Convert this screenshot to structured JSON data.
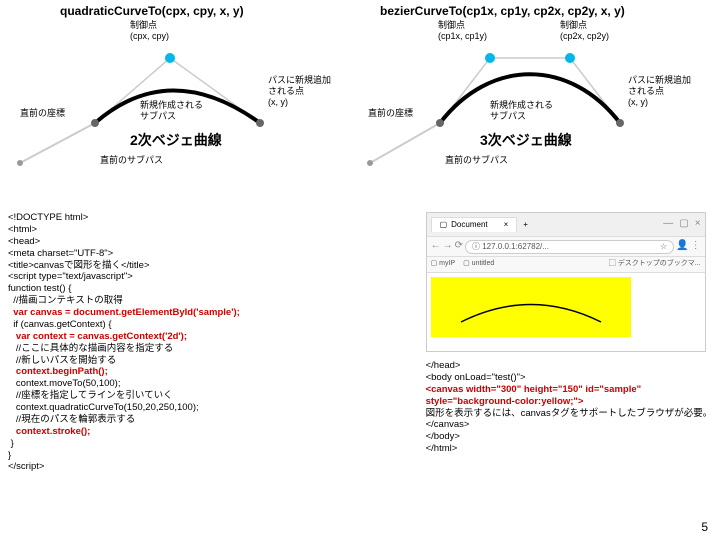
{
  "diagrams": {
    "left": {
      "title": "quadraticCurveTo(cpx, cpy, x, y)",
      "curve_title": "2次ベジェ曲線",
      "control_label": "制御点\n(cpx, cpy)",
      "newpoint_label": "パスに新規追加\nされる点\n(x, y)",
      "subpath_label": "新規作成される\nサブパス",
      "prevcoord_label": "直前の座標",
      "prevsubpath_label": "直前のサブパス",
      "control_point_color": "#00b8e6",
      "line_color": "#cccccc",
      "curve_color": "#000000"
    },
    "right": {
      "title": "bezierCurveTo(cp1x, cp1y, cp2x, cp2y, x, y)",
      "curve_title": "3次ベジェ曲線",
      "control1_label": "制御点\n(cp1x, cp1y)",
      "control2_label": "制御点\n(cp2x, cp2y)",
      "newpoint_label": "パスに新規追加\nされる点\n(x, y)",
      "subpath_label": "新規作成される\nサブパス",
      "prevcoord_label": "直前の座標",
      "prevsubpath_label": "直前のサブパス",
      "control_point_color": "#00b8e6",
      "line_color": "#cccccc",
      "curve_color": "#000000"
    }
  },
  "code_left": {
    "lines": [
      {
        "text": "<!DOCTYPE html>",
        "red": false
      },
      {
        "text": "<html>",
        "red": false
      },
      {
        "text": "<head>",
        "red": false
      },
      {
        "text": "<meta charset=\"UTF-8\">",
        "red": false
      },
      {
        "text": "<title>canvasで図形を描く</title>",
        "red": false
      },
      {
        "text": "<script type=\"text/javascript\">",
        "red": false
      },
      {
        "text": "function test() {",
        "red": false
      },
      {
        "text": "  //描画コンテキストの取得",
        "red": false
      },
      {
        "text": "  var canvas = document.getElementById('sample');",
        "red": true
      },
      {
        "text": "  if (canvas.getContext) {",
        "red": false
      },
      {
        "text": "   var context = canvas.getContext('2d');",
        "red": true
      },
      {
        "text": "   //ここに具体的な描画内容を指定する",
        "red": false
      },
      {
        "text": "   //新しいパスを開始する",
        "red": false
      },
      {
        "text": "   context.beginPath();",
        "red": true
      },
      {
        "text": "   context.moveTo(50,100);",
        "red": false
      },
      {
        "text": "   //座標を指定してラインを引いていく",
        "red": false
      },
      {
        "text": "   context.quadraticCurveTo(150,20,250,100);",
        "red": false
      },
      {
        "text": "   //現在のパスを輪郭表示する",
        "red": false
      },
      {
        "text": "   context.stroke();",
        "red": true
      },
      {
        "text": " }",
        "red": false
      },
      {
        "text": "}",
        "red": false
      },
      {
        "text": "</script>",
        "red": false
      }
    ]
  },
  "code_right": {
    "browser": {
      "tab_title": "Document",
      "url": "127.0.0.1:62782/...",
      "bookmark1": "myIP",
      "bookmark2": "untitled",
      "bookmark3": "デスクトップのブックマ..."
    },
    "lines": [
      {
        "text": "</head>",
        "red": false
      },
      {
        "text": "<body onLoad=\"test()\">",
        "red": false
      },
      {
        "text": "<canvas width=\"300\" height=\"150\" id=\"sample\"",
        "red": true
      },
      {
        "text": "style=\"background-color:yellow;\">",
        "red": true
      },
      {
        "text": "図形を表示するには、canvasタグをサポートしたブラウザが必要。",
        "red": false
      },
      {
        "text": "</canvas>",
        "red": false
      },
      {
        "text": "</body>",
        "red": false
      },
      {
        "text": "</html>",
        "red": false
      }
    ]
  },
  "page_number": "5"
}
